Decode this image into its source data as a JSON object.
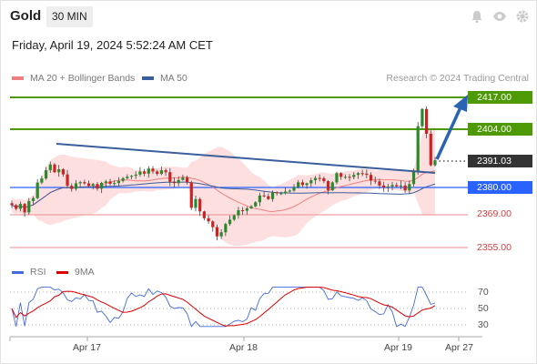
{
  "header": {
    "symbol": "Gold",
    "timeframe": "30 MIN",
    "icons": [
      "bell-icon",
      "eye-icon",
      "settings-icon"
    ]
  },
  "datetime": "Friday, April 19, 2024 5:52:24 AM CET",
  "legend": {
    "ma20_label": "MA 20 + Bollinger Bands",
    "ma50_label": "MA 50",
    "ma20_color": "#f08080",
    "ma50_color": "#3b5e9c"
  },
  "credit": "Research © 2024 Trading Central",
  "rsi_legend": {
    "rsi_label": "RSI",
    "ma_label": "9MA",
    "rsi_color": "#4169e1",
    "ma_color": "#dd0000"
  },
  "levels": {
    "r2": "2417.00",
    "r1": "2404.00",
    "last": "2391.03",
    "pivot": "2380.00",
    "s1": "2369.00",
    "s2": "2355.00"
  },
  "colors": {
    "resistance": "#4e9a06",
    "last": "#333333",
    "pivot": "#2962ff",
    "support": "#e06666",
    "up_candle": "#2a8a2a",
    "down_candle": "#cc2222",
    "arrow": "#2b63b3",
    "trendline": "#3b5e9c",
    "band": "#fcd4d4"
  },
  "x_axis": [
    "Apr 17",
    "Apr 18",
    "Apr 19",
    "Apr 27"
  ],
  "rsi_axis": [
    "70",
    "50",
    "30"
  ],
  "chart_data": {
    "type": "candlestick",
    "title": "Gold 30 MIN",
    "y_range": [
      2352,
      2422
    ],
    "x_categories": [
      "Apr 17",
      "Apr 18",
      "Apr 19",
      "Apr 27"
    ],
    "close_series": [
      2372.5,
      2371,
      2373,
      2369.5,
      2374.2,
      2375.4,
      2381.8,
      2383.5,
      2386.9,
      2389.3,
      2386.1,
      2387.3,
      2385.2,
      2380.5,
      2379.2,
      2381.5,
      2382,
      2381.5,
      2380.5,
      2381.2,
      2379.3,
      2381.7,
      2382.3,
      2381.3,
      2381.6,
      2382.5,
      2383.6,
      2384.2,
      2384.6,
      2385.1,
      2386.4,
      2385.5,
      2387.6,
      2386.4,
      2385.4,
      2386.9,
      2386.1,
      2382.2,
      2381.6,
      2382.9,
      2383.9,
      2381.9,
      2371.4,
      2375,
      2369.9,
      2367.1,
      2365.8,
      2363.4,
      2359.6,
      2361.3,
      2364.7,
      2366.5,
      2368.3,
      2370.4,
      2370.2,
      2371.2,
      2372,
      2373.7,
      2376.5,
      2376.2,
      2375,
      2377.8,
      2377.4,
      2377.4,
      2378.1,
      2378.5,
      2379.9,
      2381.9,
      2380.8,
      2381.5,
      2382.8,
      2383.7,
      2383.6,
      2382.4,
      2378.7,
      2381.9,
      2385.7,
      2384.2,
      2384.2,
      2384.1,
      2385,
      2385.7,
      2385.5,
      2385,
      2382.6,
      2382.3,
      2380.6,
      2379.8,
      2380.2,
      2380.8,
      2380.3,
      2380.6,
      2378.6,
      2381.2,
      2386.5,
      2405.1,
      2412.2,
      2402,
      2389,
      2391.03
    ],
    "annotations": {
      "resistance_2": 2417.0,
      "resistance_1": 2404.0,
      "last_price": 2391.03,
      "pivot": 2380.0,
      "support_1": 2369.0,
      "support_2": 2355.0,
      "scenario": "bullish arrow toward 2417.00"
    },
    "rsi": {
      "y_range": [
        25,
        80
      ],
      "levels": [
        70,
        50,
        30
      ]
    }
  }
}
